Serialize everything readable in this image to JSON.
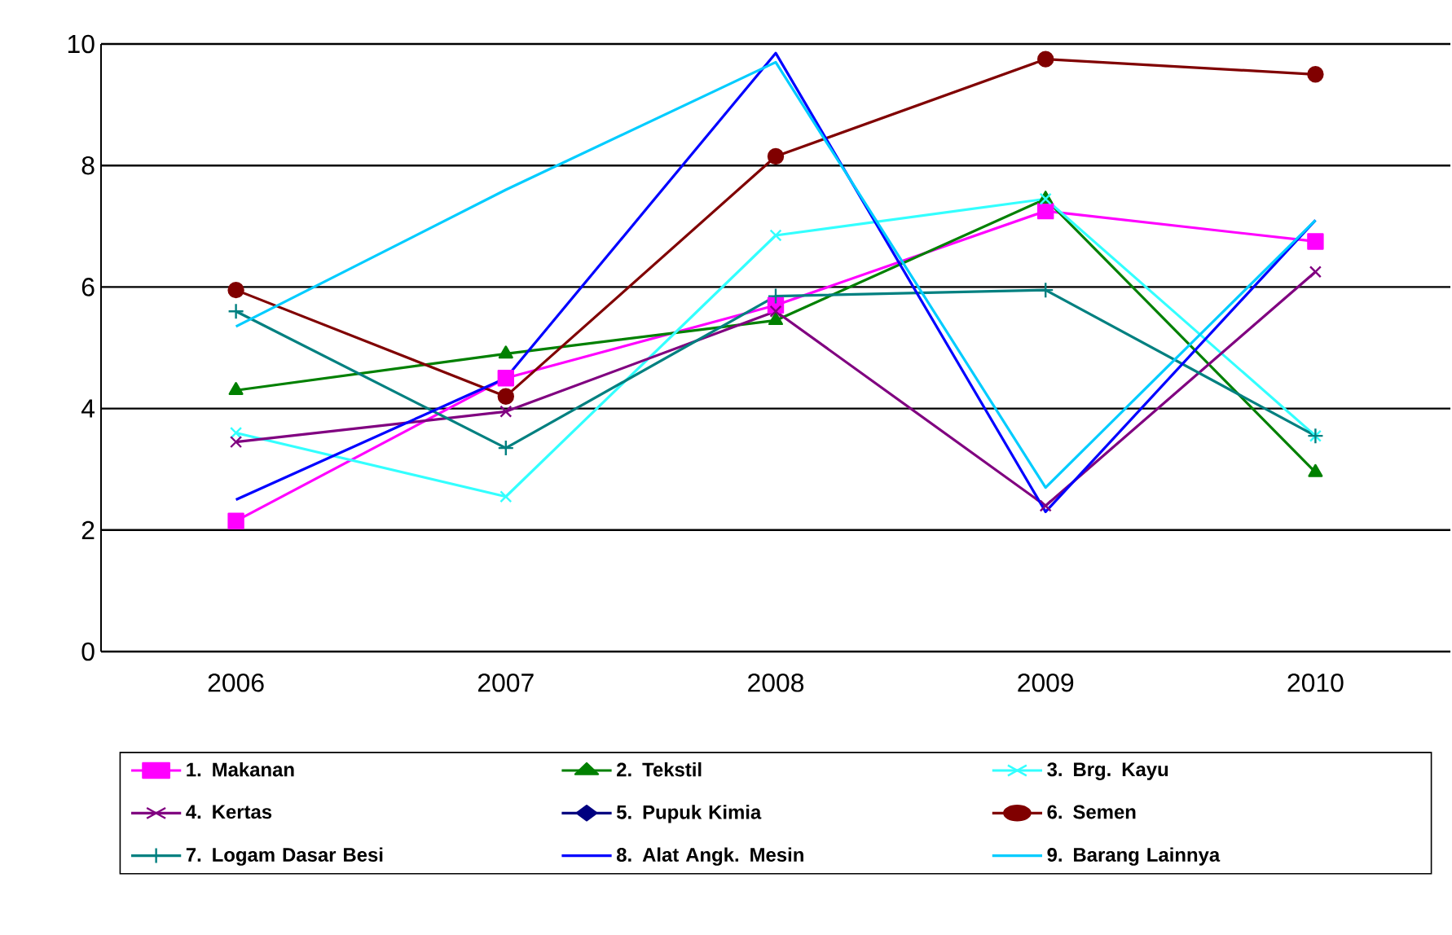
{
  "chart_data": {
    "type": "line",
    "categories": [
      "2006",
      "2007",
      "2008",
      "2009",
      "2010"
    ],
    "ylim": [
      0,
      10
    ],
    "yticks": [
      0,
      2,
      4,
      6,
      8,
      10
    ],
    "grid": "y",
    "legend": "bottom",
    "series": [
      {
        "name": "1. Makanan",
        "color": "#ff00ff",
        "marker": "square",
        "values": [
          2.15,
          4.5,
          5.7,
          7.25,
          6.75
        ]
      },
      {
        "name": "2. Tekstil",
        "color": "#008000",
        "marker": "triangle",
        "values": [
          4.3,
          4.9,
          5.45,
          7.45,
          2.95
        ]
      },
      {
        "name": "3. Brg. Kayu",
        "color": "#33ffff",
        "marker": "cross",
        "values": [
          3.6,
          2.55,
          6.85,
          7.45,
          3.55
        ]
      },
      {
        "name": "4. Kertas",
        "color": "#800080",
        "marker": "cross",
        "values": [
          3.45,
          3.95,
          5.6,
          2.4,
          6.25
        ]
      },
      {
        "name": "5. Pupuk Kimia",
        "color": "#000080",
        "marker": "diamond",
        "values": [
          null,
          null,
          null,
          null,
          null
        ]
      },
      {
        "name": "6. Semen",
        "color": "#800000",
        "marker": "circle",
        "values": [
          5.95,
          4.2,
          8.15,
          9.75,
          9.5
        ]
      },
      {
        "name": "7. Logam Dasar Besi",
        "color": "#008080",
        "marker": "plus",
        "values": [
          5.6,
          3.35,
          5.85,
          5.95,
          3.55
        ]
      },
      {
        "name": "8. Alat Angk. Mesin",
        "color": "#0000ff",
        "values": [
          2.5,
          4.5,
          9.85,
          2.3,
          7.1
        ]
      },
      {
        "name": "9. Barang Lainnya",
        "color": "#00ccff",
        "values": [
          5.35,
          7.6,
          9.7,
          2.7,
          7.1
        ]
      }
    ]
  }
}
